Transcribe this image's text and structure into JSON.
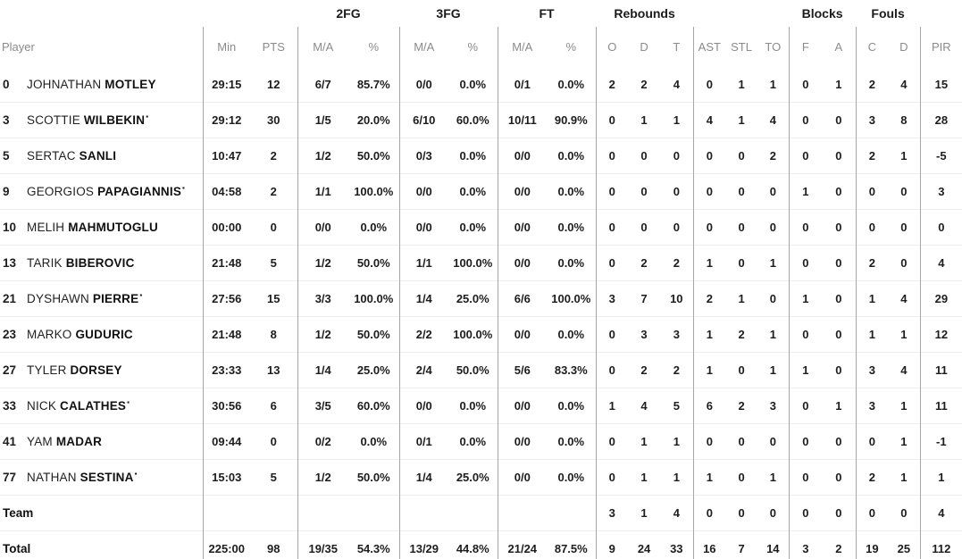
{
  "colors": {
    "background": "#ffffff",
    "group_header_text": "#1b1b1b",
    "column_header_text": "#8b8b8b",
    "data_text": "#1d1d1d",
    "vertical_divider": "#a6a6a6",
    "row_separator": "#ededed"
  },
  "starter_mark": "▪",
  "table": {
    "group_headers": [
      {
        "label": "",
        "span": 3
      },
      {
        "label": "2FG",
        "span": 2
      },
      {
        "label": "3FG",
        "span": 2
      },
      {
        "label": "FT",
        "span": 2
      },
      {
        "label": "Rebounds",
        "span": 3
      },
      {
        "label": "",
        "span": 3
      },
      {
        "label": "Blocks",
        "span": 2
      },
      {
        "label": "Fouls",
        "span": 2
      },
      {
        "label": "",
        "span": 1
      }
    ],
    "columns": [
      "Player",
      "Min",
      "PTS",
      "M/A",
      "%",
      "M/A",
      "%",
      "M/A",
      "%",
      "O",
      "D",
      "T",
      "AST",
      "STL",
      "TO",
      "F",
      "A",
      "C",
      "D",
      "PIR"
    ],
    "players": [
      {
        "number": "0",
        "first": "JOHNATHAN",
        "last": "MOTLEY",
        "starter": false,
        "stats": [
          "29:15",
          "12",
          "6/7",
          "85.7%",
          "0/0",
          "0.0%",
          "0/1",
          "0.0%",
          "2",
          "2",
          "4",
          "0",
          "1",
          "1",
          "0",
          "1",
          "2",
          "4",
          "15"
        ]
      },
      {
        "number": "3",
        "first": "SCOTTIE",
        "last": "WILBEKIN",
        "starter": true,
        "stats": [
          "29:12",
          "30",
          "1/5",
          "20.0%",
          "6/10",
          "60.0%",
          "10/11",
          "90.9%",
          "0",
          "1",
          "1",
          "4",
          "1",
          "4",
          "0",
          "0",
          "3",
          "8",
          "28"
        ]
      },
      {
        "number": "5",
        "first": "SERTAC",
        "last": "SANLI",
        "starter": false,
        "stats": [
          "10:47",
          "2",
          "1/2",
          "50.0%",
          "0/3",
          "0.0%",
          "0/0",
          "0.0%",
          "0",
          "0",
          "0",
          "0",
          "0",
          "2",
          "0",
          "0",
          "2",
          "1",
          "-5"
        ]
      },
      {
        "number": "9",
        "first": "GEORGIOS",
        "last": "PAPAGIANNIS",
        "starter": true,
        "stats": [
          "04:58",
          "2",
          "1/1",
          "100.0%",
          "0/0",
          "0.0%",
          "0/0",
          "0.0%",
          "0",
          "0",
          "0",
          "0",
          "0",
          "0",
          "1",
          "0",
          "0",
          "0",
          "3"
        ]
      },
      {
        "number": "10",
        "first": "MELIH",
        "last": "MAHMUTOGLU",
        "starter": false,
        "stats": [
          "00:00",
          "0",
          "0/0",
          "0.0%",
          "0/0",
          "0.0%",
          "0/0",
          "0.0%",
          "0",
          "0",
          "0",
          "0",
          "0",
          "0",
          "0",
          "0",
          "0",
          "0",
          "0"
        ]
      },
      {
        "number": "13",
        "first": "TARIK",
        "last": "BIBEROVIC",
        "starter": false,
        "stats": [
          "21:48",
          "5",
          "1/2",
          "50.0%",
          "1/1",
          "100.0%",
          "0/0",
          "0.0%",
          "0",
          "2",
          "2",
          "1",
          "0",
          "1",
          "0",
          "0",
          "2",
          "0",
          "4"
        ]
      },
      {
        "number": "21",
        "first": "DYSHAWN",
        "last": "PIERRE",
        "starter": true,
        "stats": [
          "27:56",
          "15",
          "3/3",
          "100.0%",
          "1/4",
          "25.0%",
          "6/6",
          "100.0%",
          "3",
          "7",
          "10",
          "2",
          "1",
          "0",
          "1",
          "0",
          "1",
          "4",
          "29"
        ]
      },
      {
        "number": "23",
        "first": "MARKO",
        "last": "GUDURIC",
        "starter": false,
        "stats": [
          "21:48",
          "8",
          "1/2",
          "50.0%",
          "2/2",
          "100.0%",
          "0/0",
          "0.0%",
          "0",
          "3",
          "3",
          "1",
          "2",
          "1",
          "0",
          "0",
          "1",
          "1",
          "12"
        ]
      },
      {
        "number": "27",
        "first": "TYLER",
        "last": "DORSEY",
        "starter": false,
        "stats": [
          "23:33",
          "13",
          "1/4",
          "25.0%",
          "2/4",
          "50.0%",
          "5/6",
          "83.3%",
          "0",
          "2",
          "2",
          "1",
          "0",
          "1",
          "1",
          "0",
          "3",
          "4",
          "11"
        ]
      },
      {
        "number": "33",
        "first": "NICK",
        "last": "CALATHES",
        "starter": true,
        "stats": [
          "30:56",
          "6",
          "3/5",
          "60.0%",
          "0/0",
          "0.0%",
          "0/0",
          "0.0%",
          "1",
          "4",
          "5",
          "6",
          "2",
          "3",
          "0",
          "1",
          "3",
          "1",
          "11"
        ]
      },
      {
        "number": "41",
        "first": "YAM",
        "last": "MADAR",
        "starter": false,
        "stats": [
          "09:44",
          "0",
          "0/2",
          "0.0%",
          "0/1",
          "0.0%",
          "0/0",
          "0.0%",
          "0",
          "1",
          "1",
          "0",
          "0",
          "0",
          "0",
          "0",
          "0",
          "1",
          "-1"
        ]
      },
      {
        "number": "77",
        "first": "NATHAN",
        "last": "SESTINA",
        "starter": true,
        "stats": [
          "15:03",
          "5",
          "1/2",
          "50.0%",
          "1/4",
          "25.0%",
          "0/0",
          "0.0%",
          "0",
          "1",
          "1",
          "1",
          "0",
          "1",
          "0",
          "0",
          "2",
          "1",
          "1"
        ]
      }
    ],
    "team_row": {
      "label": "Team",
      "stats": [
        "",
        "",
        "",
        "",
        "",
        "",
        "",
        "",
        "3",
        "1",
        "4",
        "0",
        "0",
        "0",
        "0",
        "0",
        "0",
        "0",
        "4"
      ]
    },
    "total_row": {
      "label": "Total",
      "stats": [
        "225:00",
        "98",
        "19/35",
        "54.3%",
        "13/29",
        "44.8%",
        "21/24",
        "87.5%",
        "9",
        "24",
        "33",
        "16",
        "7",
        "14",
        "3",
        "2",
        "19",
        "25",
        "112"
      ]
    }
  }
}
